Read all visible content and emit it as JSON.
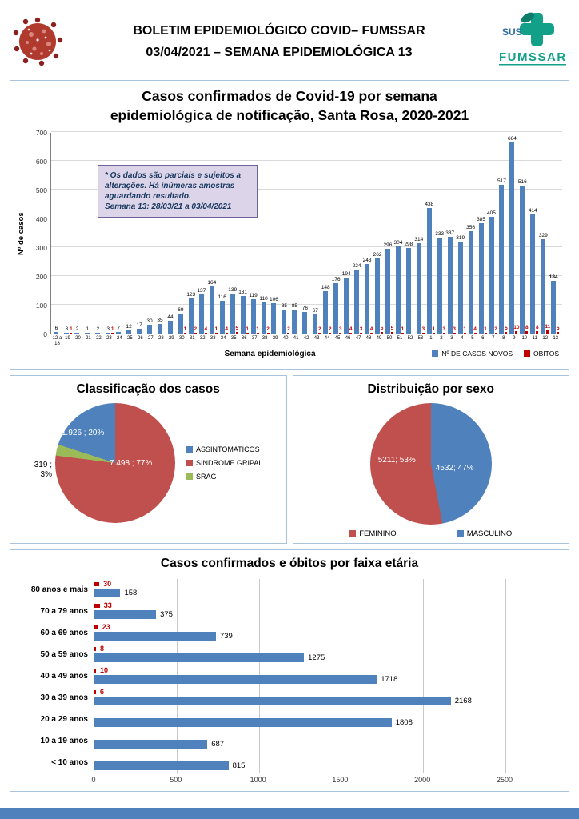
{
  "header": {
    "title_line1": "BOLETIM EPIDEMIOLÓGICO COVID– FUMSSAR",
    "title_line2": "03/04/2021 – SEMANA EPIDEMIOLÓGICA 13",
    "logo_sus": "SUS",
    "logo_name": "FUMSSAR"
  },
  "colors": {
    "cases_blue": "#4F81BD",
    "deaths_red": "#C00000",
    "sindrome_gripal_red": "#C0504D",
    "srag_green": "#9BBB59",
    "annotation_bg": "#dcd5ea",
    "footer_blue": "#4F81BD"
  },
  "chart_data": [
    {
      "id": "weekly-cases",
      "type": "bar",
      "title_line1": "Casos confirmados de Covid-19 por semana",
      "title_line2": "epidemiológica de notificação, Santa Rosa, 2020-2021",
      "ylabel": "Nº de casos",
      "xlabel": "Semana epidemiológica",
      "ylim": [
        0,
        700
      ],
      "ytick_step": 100,
      "grid": true,
      "legend_position": "bottom-right",
      "categories": [
        "12 a 18",
        "19",
        "20",
        "21",
        "22",
        "23",
        "24",
        "25",
        "26",
        "27",
        "28",
        "29",
        "30",
        "31",
        "32",
        "33",
        "34",
        "35",
        "36",
        "37",
        "38",
        "39",
        "40",
        "41",
        "42",
        "43",
        "44",
        "45",
        "46",
        "47",
        "48",
        "49",
        "50",
        "51",
        "52",
        "53",
        "1",
        "2",
        "3",
        "4",
        "5",
        "6",
        "7",
        "8",
        "9",
        "10",
        "11",
        "12",
        "13"
      ],
      "series": [
        {
          "name": "Nº DE CASOS NOVOS",
          "color": "#4F81BD",
          "values": [
            6,
            3,
            2,
            1,
            2,
            3,
            7,
            12,
            17,
            30,
            35,
            44,
            69,
            123,
            137,
            164,
            116,
            139,
            131,
            119,
            110,
            106,
            85,
            85,
            76,
            67,
            148,
            176,
            194,
            224,
            243,
            262,
            296,
            304,
            298,
            314,
            438,
            333,
            337,
            319,
            356,
            385,
            405,
            517,
            664,
            516,
            414,
            329,
            184
          ]
        },
        {
          "name": "OBITOS",
          "color": "#C00000",
          "values": [
            0,
            1,
            0,
            0,
            0,
            1,
            0,
            0,
            0,
            0,
            0,
            0,
            1,
            2,
            4,
            1,
            4,
            5,
            1,
            1,
            2,
            0,
            2,
            0,
            0,
            2,
            2,
            3,
            4,
            3,
            4,
            5,
            5,
            1,
            0,
            3,
            1,
            3,
            3,
            1,
            4,
            1,
            2,
            5,
            10,
            8,
            8,
            11,
            5
          ]
        }
      ],
      "annotation": {
        "line1": "* Os dados são parciais e sujeitos a",
        "line2": "alterações. Há inúmeras amostras",
        "line3": "aguardando resultado.",
        "line4": "Semana 13: 28/03/21 a 03/04/2021"
      }
    },
    {
      "id": "classification",
      "type": "pie",
      "title": "Classificação dos casos",
      "slices": [
        {
          "label": "SINDROME GRIPAL",
          "value": 7498,
          "pct": 77,
          "display": "7.498 ; 77%",
          "color": "#C0504D"
        },
        {
          "label": "SRAG",
          "value": 319,
          "pct": 3,
          "display": "319 ; 3%",
          "color": "#9BBB59"
        },
        {
          "label": "ASSINTOMATICOS",
          "value": 1926,
          "pct": 20,
          "display": "1.926 ; 20%",
          "color": "#4F81BD"
        }
      ],
      "legend": [
        "ASSINTOMATICOS",
        "SINDROME GRIPAL",
        "SRAG"
      ]
    },
    {
      "id": "sex-distribution",
      "type": "pie",
      "title": "Distribuição por sexo",
      "slices": [
        {
          "label": "MASCULINO",
          "value": 4532,
          "pct": 47,
          "display": "4532; 47%",
          "color": "#4F81BD"
        },
        {
          "label": "FEMININO",
          "value": 5211,
          "pct": 53,
          "display": "5211; 53%",
          "color": "#C0504D"
        }
      ],
      "legend": [
        "FEMININO",
        "MASCULINO"
      ]
    },
    {
      "id": "age-groups",
      "type": "bar",
      "title": "Casos confirmados e óbitos  por faixa etária",
      "orientation": "horizontal",
      "xlim": [
        0,
        2500
      ],
      "xticks": [
        0,
        500,
        1000,
        1500,
        2000,
        2500
      ],
      "categories": [
        "80 anos e mais",
        "70 a 79 anos",
        "60 a 69 anos",
        "50 a 59 anos",
        "40 a 49 anos",
        "30 a 39 anos",
        "20 a 29 anos",
        "10 a 19 anos",
        "< 10 anos"
      ],
      "series": [
        {
          "name": "óbitos",
          "color": "#C00000",
          "values": [
            30,
            33,
            23,
            8,
            10,
            6,
            null,
            null,
            null
          ]
        },
        {
          "name": "casos confirmados",
          "color": "#4F81BD",
          "values": [
            158,
            375,
            739,
            1275,
            1718,
            2168,
            1808,
            687,
            815
          ]
        }
      ]
    }
  ]
}
